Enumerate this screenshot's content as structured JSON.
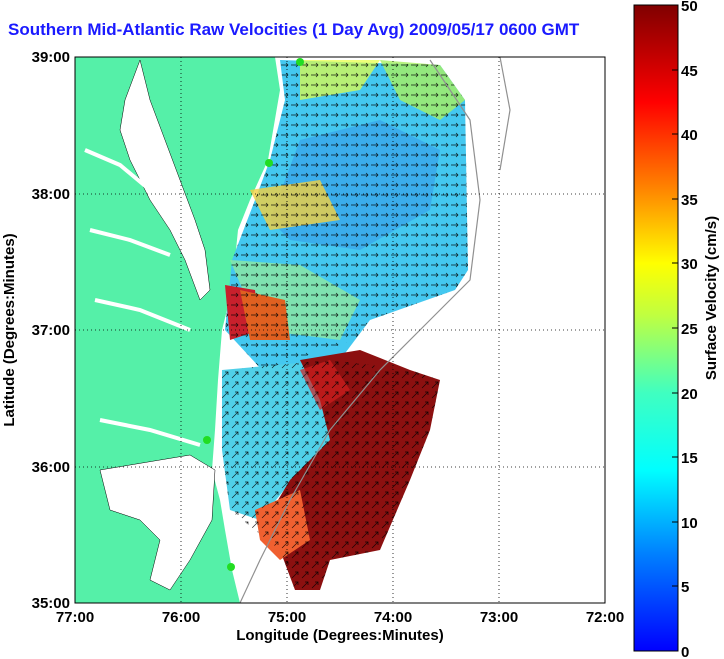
{
  "title": "Southern Mid-Atlantic Raw Velocities (1 Day Avg) 2009/05/17 0600 GMT",
  "map": {
    "xlabel": "Longitude (Degrees:Minutes)",
    "ylabel": "Latitude (Degrees:Minutes)",
    "x_ticks": [
      "77:00",
      "76:00",
      "75:00",
      "74:00",
      "73:00",
      "72:00"
    ],
    "y_ticks": [
      "39:00",
      "38:00",
      "37:00",
      "36:00",
      "35:00"
    ],
    "land_color": "#55f0a8",
    "grid": "dotted"
  },
  "colorbar": {
    "label": "Surface Velocity (cm/s)",
    "ticks": [
      "50",
      "45",
      "40",
      "35",
      "30",
      "25",
      "20",
      "15",
      "10",
      "5",
      "0"
    ],
    "range": [
      0,
      50
    ],
    "colormap": "jet"
  }
}
